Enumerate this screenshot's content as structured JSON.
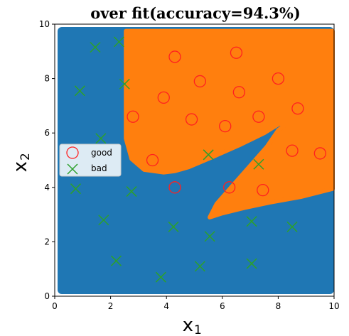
{
  "chart_data": {
    "type": "scatter",
    "title": "over fit(accuracy=94.3%)",
    "xlabel": "x",
    "xlabel_sub": "1",
    "ylabel": "x",
    "ylabel_sub": "2",
    "xlim": [
      0,
      10
    ],
    "ylim": [
      0,
      10
    ],
    "xticks": [
      0,
      2,
      4,
      6,
      8,
      10
    ],
    "yticks": [
      0,
      2,
      4,
      6,
      8,
      10
    ],
    "grid": false,
    "legend_position": "center-left",
    "background_color": "#1f77b4",
    "decision_region_color": "#ff7f0e",
    "series": [
      {
        "name": "good",
        "marker": "circle-open",
        "color": "#ff2020",
        "points": [
          [
            4.3,
            8.8
          ],
          [
            6.5,
            8.95
          ],
          [
            5.2,
            7.9
          ],
          [
            8.0,
            8.0
          ],
          [
            3.9,
            7.3
          ],
          [
            6.6,
            7.5
          ],
          [
            2.8,
            6.6
          ],
          [
            4.9,
            6.5
          ],
          [
            6.1,
            6.25
          ],
          [
            7.3,
            6.6
          ],
          [
            8.7,
            6.9
          ],
          [
            3.5,
            5.0
          ],
          [
            8.5,
            5.35
          ],
          [
            9.5,
            5.25
          ],
          [
            4.3,
            4.0
          ],
          [
            6.25,
            4.0
          ],
          [
            7.45,
            3.9
          ]
        ]
      },
      {
        "name": "bad",
        "marker": "x",
        "color": "#2ca02c",
        "points": [
          [
            1.45,
            9.15
          ],
          [
            2.3,
            9.35
          ],
          [
            0.9,
            7.55
          ],
          [
            2.5,
            7.8
          ],
          [
            1.65,
            5.8
          ],
          [
            5.5,
            5.2
          ],
          [
            7.3,
            4.85
          ],
          [
            0.75,
            3.95
          ],
          [
            2.75,
            3.85
          ],
          [
            1.75,
            2.8
          ],
          [
            4.25,
            2.55
          ],
          [
            5.55,
            2.2
          ],
          [
            7.05,
            2.75
          ],
          [
            8.5,
            2.55
          ],
          [
            2.2,
            1.3
          ],
          [
            3.8,
            0.7
          ],
          [
            5.2,
            1.1
          ],
          [
            7.05,
            1.2
          ]
        ]
      }
    ],
    "decision_region": [
      [
        2.55,
        9.75
      ],
      [
        9.95,
        9.75
      ],
      [
        9.95,
        3.95
      ],
      [
        8.8,
        3.65
      ],
      [
        7.7,
        3.45
      ],
      [
        6.8,
        3.25
      ],
      [
        6.0,
        3.05
      ],
      [
        5.55,
        2.9
      ],
      [
        5.8,
        3.4
      ],
      [
        6.4,
        4.1
      ],
      [
        7.0,
        4.8
      ],
      [
        7.6,
        5.5
      ],
      [
        8.0,
        6.1
      ],
      [
        8.25,
        6.3
      ],
      [
        8.05,
        6.35
      ],
      [
        7.5,
        6.0
      ],
      [
        6.6,
        5.55
      ],
      [
        5.6,
        5.1
      ],
      [
        4.8,
        4.75
      ],
      [
        4.3,
        4.6
      ],
      [
        3.9,
        4.55
      ],
      [
        3.2,
        4.65
      ],
      [
        2.75,
        5.05
      ],
      [
        2.55,
        5.8
      ],
      [
        2.55,
        6.5
      ],
      [
        2.55,
        8.0
      ]
    ]
  }
}
